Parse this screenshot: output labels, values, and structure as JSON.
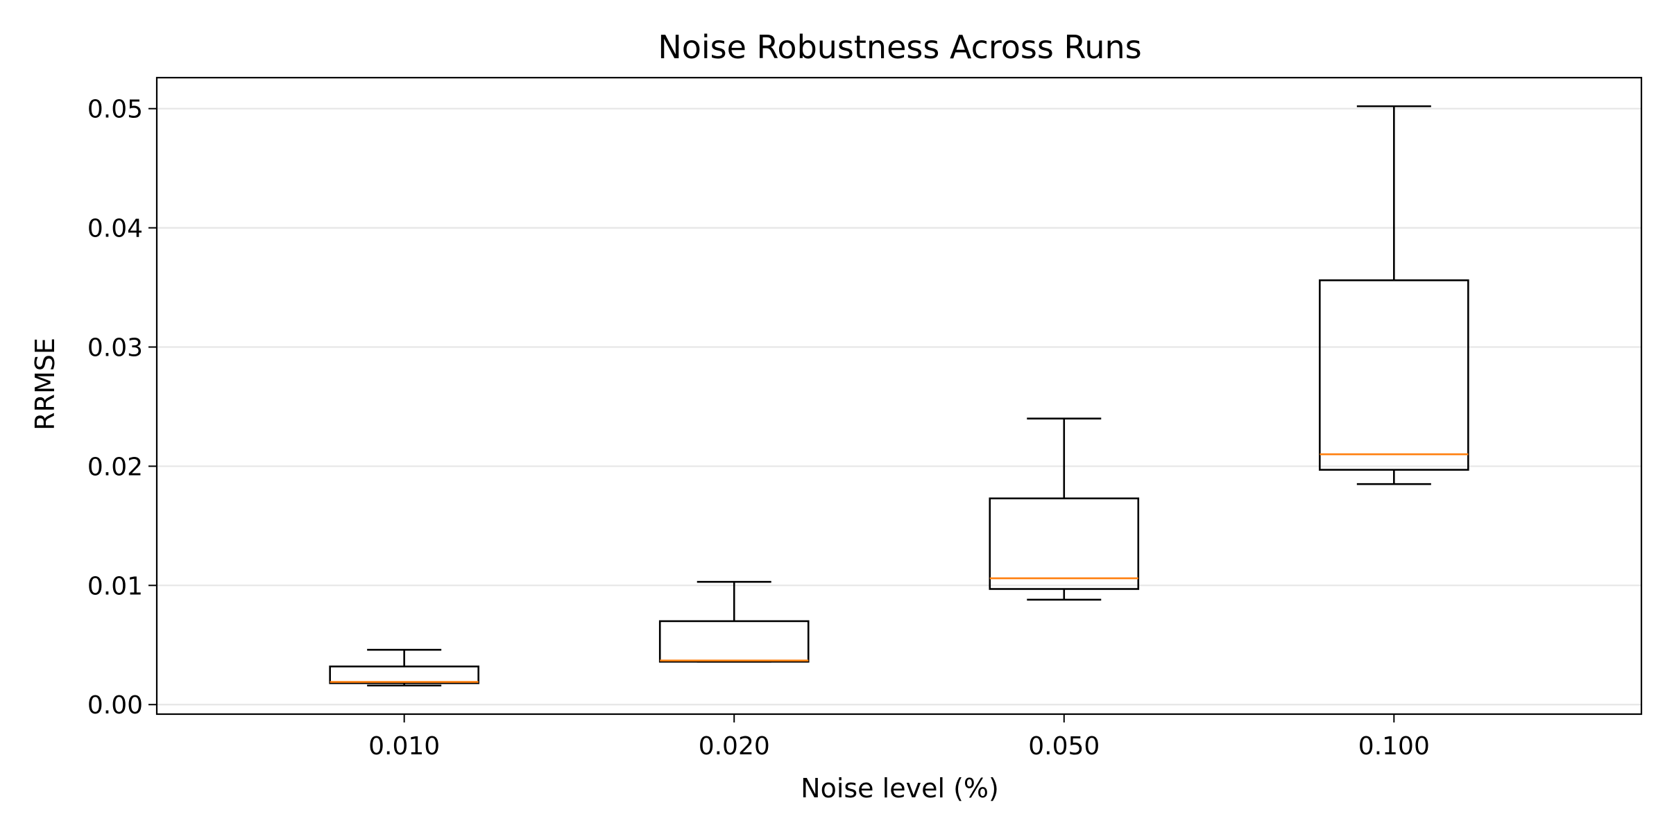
{
  "chart_data": {
    "type": "box",
    "title": "Noise Robustness Across Runs",
    "xlabel": "Noise level (%)",
    "ylabel": "RRMSE",
    "categories": [
      "0.010",
      "0.020",
      "0.050",
      "0.100"
    ],
    "ylim": [
      -0.0008,
      0.0526
    ],
    "yticks": [
      {
        "value": 0.0,
        "label": "0.00"
      },
      {
        "value": 0.01,
        "label": "0.01"
      },
      {
        "value": 0.02,
        "label": "0.02"
      },
      {
        "value": 0.03,
        "label": "0.03"
      },
      {
        "value": 0.04,
        "label": "0.04"
      },
      {
        "value": 0.05,
        "label": "0.05"
      }
    ],
    "grid": {
      "y": true,
      "x": false
    },
    "boxes": [
      {
        "category": "0.010",
        "whisker_low": 0.0016,
        "q1": 0.0018,
        "median": 0.0019,
        "q3": 0.0032,
        "whisker_high": 0.0046
      },
      {
        "category": "0.020",
        "whisker_low": 0.0036,
        "q1": 0.0036,
        "median": 0.0037,
        "q3": 0.007,
        "whisker_high": 0.0103
      },
      {
        "category": "0.050",
        "whisker_low": 0.0088,
        "q1": 0.0097,
        "median": 0.0106,
        "q3": 0.0173,
        "whisker_high": 0.024
      },
      {
        "category": "0.100",
        "whisker_low": 0.0185,
        "q1": 0.0197,
        "median": 0.021,
        "q3": 0.0356,
        "whisker_high": 0.0502
      }
    ],
    "colors": {
      "box": "#000000",
      "median": "#ff7f0e",
      "grid": "#e6e6e6",
      "background": "#ffffff"
    }
  }
}
